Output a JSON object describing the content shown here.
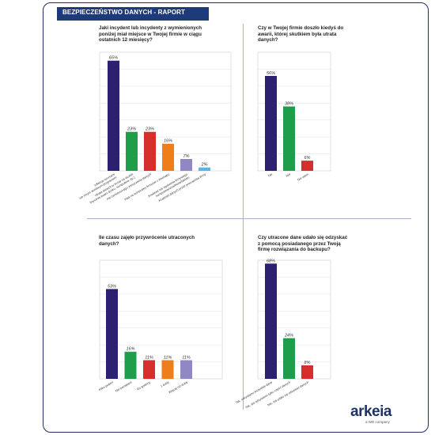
{
  "header": {
    "title": "BEZPIECZEŃSTWO DANYCH - RAPORT"
  },
  "logo": {
    "name": "arkeia",
    "tagline": "a WD company"
  },
  "colors": {
    "navy": "#2c2170",
    "green": "#1e9e4b",
    "red": "#d62d2d",
    "orange": "#ee7d1b",
    "purple": "#8f88c2",
    "light_blue": "#55b7e6",
    "header_bg": "#1f3a78"
  },
  "chart_data": [
    {
      "type": "bar",
      "title": "Jaki incydent lub incydenty z wymienionych poniżej miał miejsce w Twojej firmie w ciągu ostatnich 12 miesięcy?",
      "title_lines": [
        "Jaki incydent lub incydenty z wymienionych",
        "poniżej miał miejsce w Twojej firmie w ciągu",
        "ostatnich 12 miesięcy?"
      ],
      "categories": [
        [
          "Infekcje wirusami",
          "lub innym złośliwym programem"
        ],
        [
          "Utrata danych w firmie na skutek",
          "fizycznej awarii dysku, komputera, itp.)"
        ],
        [
          "Akt zamierzonego zniszczenia danych"
        ],
        [
          "Atak na komputery firmowe z zewnątrz"
        ],
        [
          "Kradzież lub zgubienie firmowego",
          "komputera/smartfona/tabletu"
        ],
        [
          "Kradzież danych przez pracownika firmy"
        ]
      ],
      "values": [
        65,
        23,
        23,
        16,
        7,
        2
      ],
      "labels": [
        "65%",
        "23%",
        "23%",
        "16%",
        "7%",
        "2%"
      ],
      "bar_colors": [
        "#2c2170",
        "#1e9e4b",
        "#d62d2d",
        "#ee7d1b",
        "#8f88c2",
        "#55b7e6"
      ],
      "ylim": [
        0,
        70
      ],
      "grid": true
    },
    {
      "type": "bar",
      "title": "Czy w Twojej firmie doszło kiedyś do awarii, której skutkiem była utrata danych?",
      "title_lines": [
        "Czy w Twojej firmie doszło kiedyś do",
        "awarii, której skutkiem była utrata",
        "danych?"
      ],
      "categories": [
        [
          "Tak"
        ],
        [
          "Nie"
        ],
        [
          "Nie wiem"
        ]
      ],
      "values": [
        56,
        38,
        6
      ],
      "labels": [
        "56%",
        "38%",
        "6%"
      ],
      "bar_colors": [
        "#2c2170",
        "#1e9e4b",
        "#d62d2d"
      ],
      "ylim": [
        0,
        70
      ],
      "grid": true
    },
    {
      "type": "bar",
      "title": "Ile czasu zajęło przywrócenie utraconych danych?",
      "title_lines": [
        "Ile czasu zajęło przywrócenie utraconych",
        "danych?"
      ],
      "categories": [
        [
          "Kilka godzin"
        ],
        [
          "Nie pamiętam"
        ],
        [
          "Do godziny"
        ],
        [
          "1 dobę"
        ],
        [
          "Więcej niż dobę"
        ]
      ],
      "values": [
        53,
        16,
        11,
        11,
        11
      ],
      "labels": [
        "53%",
        "16%",
        "11%",
        "11%",
        "11%"
      ],
      "bar_colors": [
        "#2c2170",
        "#1e9e4b",
        "#d62d2d",
        "#ee7d1b",
        "#8f88c2"
      ],
      "ylim": [
        0,
        70
      ],
      "grid": true
    },
    {
      "type": "bar",
      "title": "Czy utracone dane udało się odzyskać z pomocą posiadanego przez Twoją firmę rozwiązania do backupu?",
      "title_lines": [
        "Czy utracone dane udało się odzyskać",
        "z pomocą posiadanego przez Twoją",
        "firmę rozwiązania do backupu?"
      ],
      "categories": [
        [
          "Tak, odzyskano wszystkie dane"
        ],
        [
          "Tak, ale odzyskano tylko część danych"
        ],
        [
          "Nie, nie udało się odzyskać danych"
        ]
      ],
      "values": [
        68,
        24,
        8
      ],
      "labels": [
        "68%",
        "24%",
        "8%"
      ],
      "bar_colors": [
        "#2c2170",
        "#1e9e4b",
        "#d62d2d"
      ],
      "ylim": [
        0,
        70
      ],
      "grid": true
    }
  ]
}
